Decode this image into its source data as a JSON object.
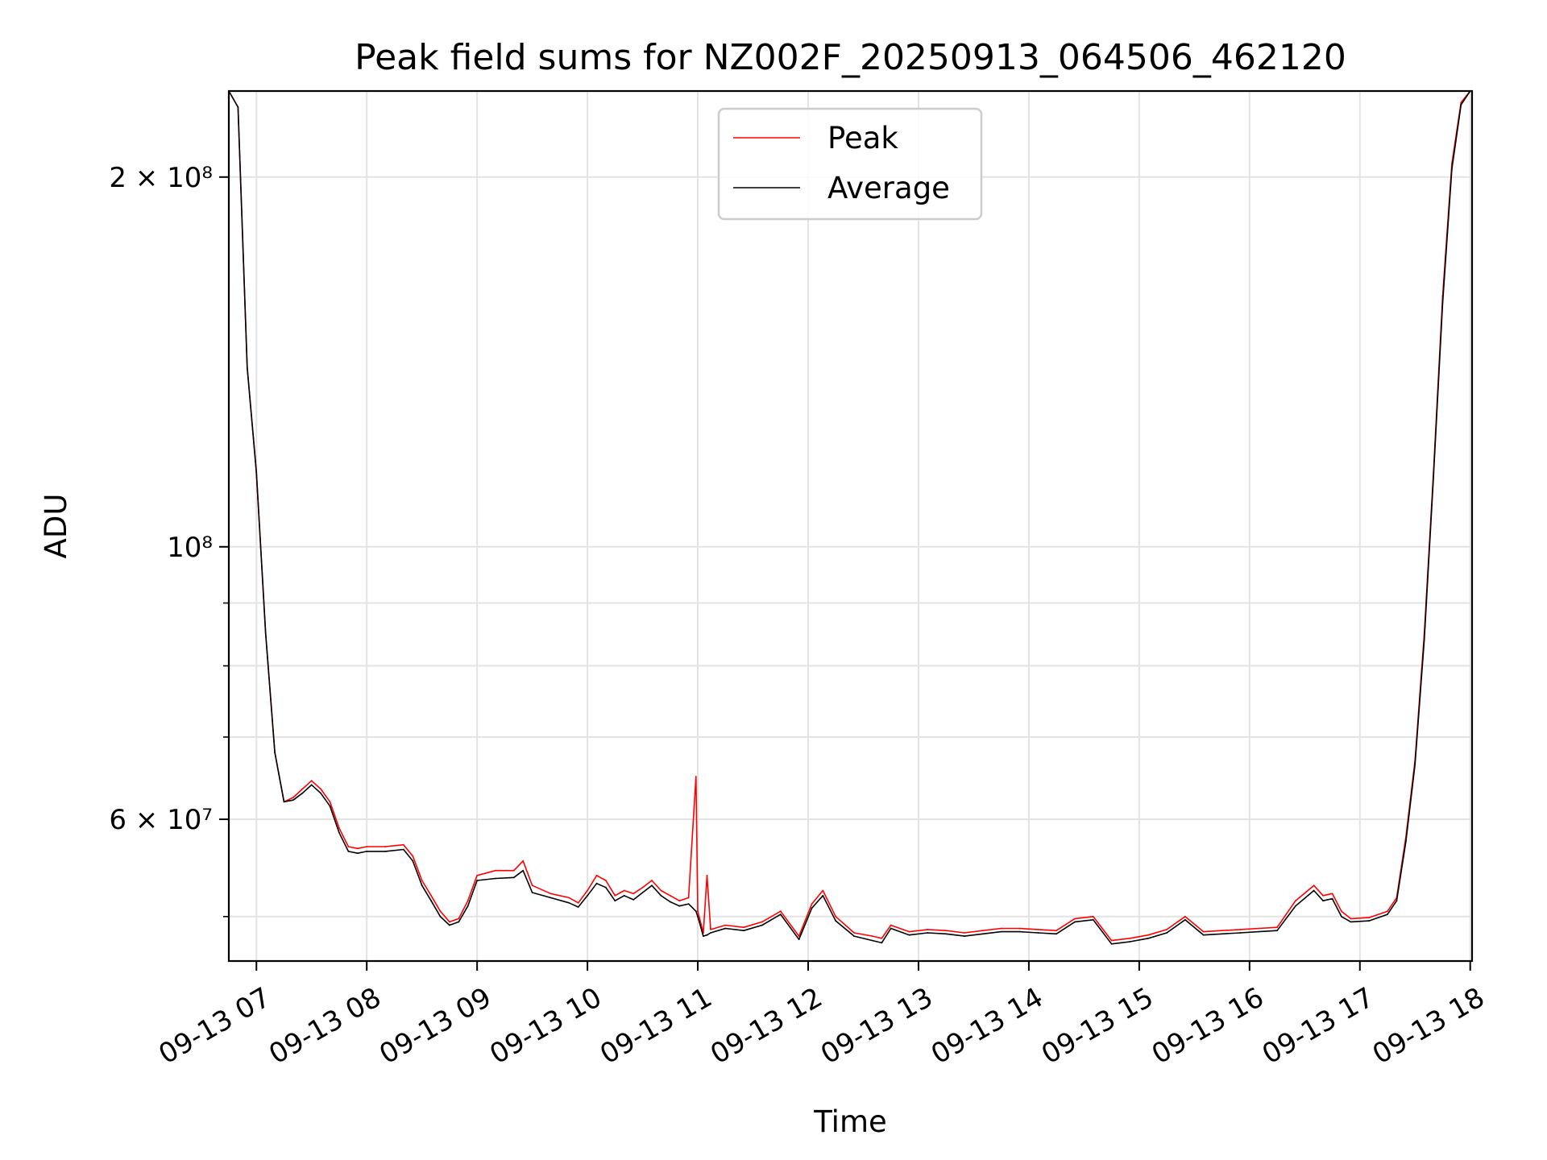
{
  "chart_data": {
    "type": "line",
    "title": "Peak field sums for NZ002F_20250913_064506_462120",
    "xlabel": "Time",
    "ylabel": "ADU",
    "yscale": "log",
    "xlim": [
      "09-13 06:45",
      "09-13 18:01"
    ],
    "ylim": [
      46000000,
      235000000
    ],
    "grid": true,
    "legend_position": "upper center",
    "x_ticks": [
      "09-13 07",
      "09-13 08",
      "09-13 09",
      "09-13 10",
      "09-13 11",
      "09-13 12",
      "09-13 13",
      "09-13 14",
      "09-13 15",
      "09-13 16",
      "09-13 17",
      "09-13 18"
    ],
    "y_ticks": [
      {
        "value": 200000000,
        "label": "2 × 10⁸"
      },
      {
        "value": 100000000,
        "label": "10⁸"
      },
      {
        "value": 60000000,
        "label": "6 × 10⁷"
      }
    ],
    "series": [
      {
        "name": "Peak",
        "color": "#ff0000",
        "points": [
          [
            "09-13 06:45",
            235000000
          ],
          [
            "09-13 06:50",
            228000000
          ],
          [
            "09-13 06:55",
            140000000
          ],
          [
            "09-13 07:00",
            115000000
          ],
          [
            "09-13 07:05",
            85000000
          ],
          [
            "09-13 07:10",
            68000000
          ],
          [
            "09-13 07:15",
            62000000
          ],
          [
            "09-13 07:20",
            62500000
          ],
          [
            "09-13 07:25",
            63500000
          ],
          [
            "09-13 07:30",
            64500000
          ],
          [
            "09-13 07:35",
            63500000
          ],
          [
            "09-13 07:40",
            62000000
          ],
          [
            "09-13 07:45",
            59000000
          ],
          [
            "09-13 07:50",
            57000000
          ],
          [
            "09-13 07:55",
            56800000
          ],
          [
            "09-13 08:00",
            57000000
          ],
          [
            "09-13 08:10",
            57000000
          ],
          [
            "09-13 08:20",
            57200000
          ],
          [
            "09-13 08:25",
            56000000
          ],
          [
            "09-13 08:30",
            53500000
          ],
          [
            "09-13 08:35",
            52000000
          ],
          [
            "09-13 08:40",
            50500000
          ],
          [
            "09-13 08:45",
            49500000
          ],
          [
            "09-13 08:50",
            49800000
          ],
          [
            "09-13 08:55",
            51500000
          ],
          [
            "09-13 09:00",
            54000000
          ],
          [
            "09-13 09:10",
            54500000
          ],
          [
            "09-13 09:20",
            54500000
          ],
          [
            "09-13 09:25",
            55500000
          ],
          [
            "09-13 09:30",
            53000000
          ],
          [
            "09-13 09:40",
            52200000
          ],
          [
            "09-13 09:50",
            51800000
          ],
          [
            "09-13 09:55",
            51300000
          ],
          [
            "09-13 10:00",
            52500000
          ],
          [
            "09-13 10:05",
            54000000
          ],
          [
            "09-13 10:10",
            53500000
          ],
          [
            "09-13 10:15",
            52000000
          ],
          [
            "09-13 10:20",
            52500000
          ],
          [
            "09-13 10:25",
            52200000
          ],
          [
            "09-13 10:30",
            52800000
          ],
          [
            "09-13 10:35",
            53500000
          ],
          [
            "09-13 10:40",
            52500000
          ],
          [
            "09-13 10:45",
            52000000
          ],
          [
            "09-13 10:50",
            51500000
          ],
          [
            "09-13 10:55",
            51800000
          ],
          [
            "09-13 10:59",
            65000000
          ],
          [
            "09-13 11:00",
            50500000
          ],
          [
            "09-13 11:03",
            48500000
          ],
          [
            "09-13 11:05",
            54000000
          ],
          [
            "09-13 11:07",
            48800000
          ],
          [
            "09-13 11:15",
            49200000
          ],
          [
            "09-13 11:25",
            49000000
          ],
          [
            "09-13 11:35",
            49500000
          ],
          [
            "09-13 11:45",
            50500000
          ],
          [
            "09-13 11:55",
            48200000
          ],
          [
            "09-13 12:02",
            51200000
          ],
          [
            "09-13 12:08",
            52500000
          ],
          [
            "09-13 12:15",
            50000000
          ],
          [
            "09-13 12:25",
            48500000
          ],
          [
            "09-13 12:35",
            48200000
          ],
          [
            "09-13 12:40",
            48000000
          ],
          [
            "09-13 12:45",
            49200000
          ],
          [
            "09-13 12:55",
            48600000
          ],
          [
            "09-13 13:05",
            48800000
          ],
          [
            "09-13 13:15",
            48700000
          ],
          [
            "09-13 13:25",
            48500000
          ],
          [
            "09-13 13:35",
            48700000
          ],
          [
            "09-13 13:45",
            48900000
          ],
          [
            "09-13 13:55",
            48900000
          ],
          [
            "09-13 14:05",
            48800000
          ],
          [
            "09-13 14:15",
            48700000
          ],
          [
            "09-13 14:25",
            49800000
          ],
          [
            "09-13 14:35",
            50000000
          ],
          [
            "09-13 14:45",
            47800000
          ],
          [
            "09-13 14:55",
            48000000
          ],
          [
            "09-13 15:05",
            48300000
          ],
          [
            "09-13 15:15",
            48800000
          ],
          [
            "09-13 15:25",
            50000000
          ],
          [
            "09-13 15:35",
            48600000
          ],
          [
            "09-13 15:45",
            48700000
          ],
          [
            "09-13 15:55",
            48800000
          ],
          [
            "09-13 16:05",
            48900000
          ],
          [
            "09-13 16:15",
            49000000
          ],
          [
            "09-13 16:25",
            51500000
          ],
          [
            "09-13 16:35",
            53000000
          ],
          [
            "09-13 16:40",
            52000000
          ],
          [
            "09-13 16:45",
            52200000
          ],
          [
            "09-13 16:50",
            50500000
          ],
          [
            "09-13 16:55",
            49800000
          ],
          [
            "09-13 17:05",
            49900000
          ],
          [
            "09-13 17:15",
            50500000
          ],
          [
            "09-13 17:20",
            51800000
          ],
          [
            "09-13 17:25",
            58000000
          ],
          [
            "09-13 17:30",
            67000000
          ],
          [
            "09-13 17:35",
            85000000
          ],
          [
            "09-13 17:40",
            115000000
          ],
          [
            "09-13 17:45",
            160000000
          ],
          [
            "09-13 17:50",
            205000000
          ],
          [
            "09-13 17:55",
            230000000
          ],
          [
            "09-13 18:00",
            235000000
          ]
        ]
      },
      {
        "name": "Average",
        "color": "#000000",
        "points": [
          [
            "09-13 06:45",
            235000000
          ],
          [
            "09-13 06:50",
            228000000
          ],
          [
            "09-13 06:55",
            140000000
          ],
          [
            "09-13 07:00",
            115000000
          ],
          [
            "09-13 07:05",
            85000000
          ],
          [
            "09-13 07:10",
            68000000
          ],
          [
            "09-13 07:15",
            62000000
          ],
          [
            "09-13 07:20",
            62200000
          ],
          [
            "09-13 07:25",
            63000000
          ],
          [
            "09-13 07:30",
            64000000
          ],
          [
            "09-13 07:35",
            63000000
          ],
          [
            "09-13 07:40",
            61500000
          ],
          [
            "09-13 07:45",
            58500000
          ],
          [
            "09-13 07:50",
            56500000
          ],
          [
            "09-13 07:55",
            56300000
          ],
          [
            "09-13 08:00",
            56500000
          ],
          [
            "09-13 08:10",
            56500000
          ],
          [
            "09-13 08:20",
            56700000
          ],
          [
            "09-13 08:25",
            55500000
          ],
          [
            "09-13 08:30",
            53000000
          ],
          [
            "09-13 08:35",
            51500000
          ],
          [
            "09-13 08:40",
            50000000
          ],
          [
            "09-13 08:45",
            49200000
          ],
          [
            "09-13 08:50",
            49500000
          ],
          [
            "09-13 08:55",
            51000000
          ],
          [
            "09-13 09:00",
            53500000
          ],
          [
            "09-13 09:10",
            53700000
          ],
          [
            "09-13 09:20",
            53800000
          ],
          [
            "09-13 09:25",
            54500000
          ],
          [
            "09-13 09:30",
            52300000
          ],
          [
            "09-13 09:40",
            51800000
          ],
          [
            "09-13 09:50",
            51300000
          ],
          [
            "09-13 09:55",
            50900000
          ],
          [
            "09-13 10:00",
            52000000
          ],
          [
            "09-13 10:05",
            53200000
          ],
          [
            "09-13 10:10",
            52800000
          ],
          [
            "09-13 10:15",
            51500000
          ],
          [
            "09-13 10:20",
            52000000
          ],
          [
            "09-13 10:25",
            51600000
          ],
          [
            "09-13 10:30",
            52300000
          ],
          [
            "09-13 10:35",
            53000000
          ],
          [
            "09-13 10:40",
            52000000
          ],
          [
            "09-13 10:45",
            51400000
          ],
          [
            "09-13 10:50",
            51000000
          ],
          [
            "09-13 10:55",
            51200000
          ],
          [
            "09-13 10:59",
            50500000
          ],
          [
            "09-13 11:00",
            50000000
          ],
          [
            "09-13 11:03",
            48200000
          ],
          [
            "09-13 11:05",
            48300000
          ],
          [
            "09-13 11:07",
            48500000
          ],
          [
            "09-13 11:15",
            48900000
          ],
          [
            "09-13 11:25",
            48700000
          ],
          [
            "09-13 11:35",
            49200000
          ],
          [
            "09-13 11:45",
            50200000
          ],
          [
            "09-13 11:55",
            47900000
          ],
          [
            "09-13 12:02",
            50800000
          ],
          [
            "09-13 12:08",
            52000000
          ],
          [
            "09-13 12:15",
            49600000
          ],
          [
            "09-13 12:25",
            48200000
          ],
          [
            "09-13 12:35",
            47800000
          ],
          [
            "09-13 12:40",
            47600000
          ],
          [
            "09-13 12:45",
            48900000
          ],
          [
            "09-13 12:55",
            48300000
          ],
          [
            "09-13 13:05",
            48500000
          ],
          [
            "09-13 13:15",
            48400000
          ],
          [
            "09-13 13:25",
            48200000
          ],
          [
            "09-13 13:35",
            48400000
          ],
          [
            "09-13 13:45",
            48600000
          ],
          [
            "09-13 13:55",
            48600000
          ],
          [
            "09-13 14:05",
            48500000
          ],
          [
            "09-13 14:15",
            48400000
          ],
          [
            "09-13 14:25",
            49500000
          ],
          [
            "09-13 14:35",
            49700000
          ],
          [
            "09-13 14:45",
            47500000
          ],
          [
            "09-13 14:55",
            47700000
          ],
          [
            "09-13 15:05",
            48000000
          ],
          [
            "09-13 15:15",
            48500000
          ],
          [
            "09-13 15:25",
            49700000
          ],
          [
            "09-13 15:35",
            48300000
          ],
          [
            "09-13 15:45",
            48400000
          ],
          [
            "09-13 15:55",
            48500000
          ],
          [
            "09-13 16:05",
            48600000
          ],
          [
            "09-13 16:15",
            48700000
          ],
          [
            "09-13 16:25",
            51000000
          ],
          [
            "09-13 16:35",
            52500000
          ],
          [
            "09-13 16:40",
            51500000
          ],
          [
            "09-13 16:45",
            51700000
          ],
          [
            "09-13 16:50",
            50000000
          ],
          [
            "09-13 16:55",
            49500000
          ],
          [
            "09-13 17:05",
            49600000
          ],
          [
            "09-13 17:15",
            50200000
          ],
          [
            "09-13 17:20",
            51500000
          ],
          [
            "09-13 17:25",
            57500000
          ],
          [
            "09-13 17:30",
            66500000
          ],
          [
            "09-13 17:35",
            84000000
          ],
          [
            "09-13 17:40",
            114000000
          ],
          [
            "09-13 17:45",
            158000000
          ],
          [
            "09-13 17:50",
            203000000
          ],
          [
            "09-13 17:55",
            229000000
          ],
          [
            "09-13 18:00",
            235000000
          ]
        ]
      }
    ]
  }
}
